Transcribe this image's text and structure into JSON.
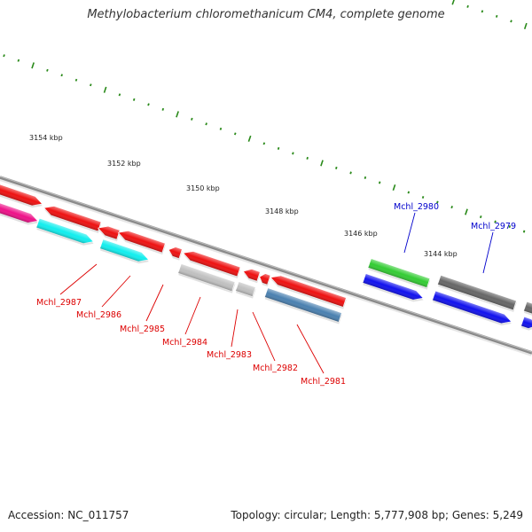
{
  "title": "Methylobacterium chloromethanicum CM4, complete genome",
  "footer": {
    "accession": "Accession: NC_011757",
    "summary": "Topology: circular; Length: 5,777,908 bp; Genes: 5,249"
  },
  "colors": {
    "backbone": "#8a8a8a",
    "tick": "#2a8a1a",
    "red": "#ee1111",
    "cyan": "#11eeee",
    "magenta": "#ee1188",
    "grey_light": "#c0c0c0",
    "steel_blue": "#4a80b0",
    "green": "#33cc33",
    "blue": "#1111ee",
    "grey_dark": "#666666",
    "label_red": "#dd0000",
    "label_blue": "#0000cc"
  },
  "scale_labels": [
    "3154 kbp",
    "3152 kbp",
    "3150 kbp",
    "3148 kbp",
    "3146 kbp",
    "3144 kbp"
  ],
  "gene_labels": [
    "Mchl_2987",
    "Mchl_2986",
    "Mchl_2985",
    "Mchl_2984",
    "Mchl_2983",
    "Mchl_2982",
    "Mchl_2981",
    "Mchl_2980",
    "Mchl_2979"
  ]
}
